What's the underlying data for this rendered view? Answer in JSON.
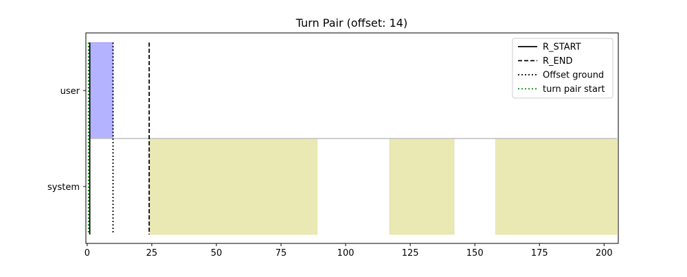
{
  "chart_data": {
    "type": "timeline",
    "title": "Turn Pair (offset: 14)",
    "xlabel": "",
    "ylabel": "",
    "xlim": [
      -0.5,
      205.5
    ],
    "x_ticks": [
      0,
      25,
      50,
      75,
      100,
      125,
      150,
      175,
      200
    ],
    "x_tick_labels": [
      "0",
      "25",
      "50",
      "75",
      "100",
      "125",
      "150",
      "175",
      "200"
    ],
    "rows": [
      {
        "label": "user",
        "color": "#b3b3ff",
        "edge": "#0000ff",
        "segments": [
          [
            1,
            10
          ]
        ]
      },
      {
        "label": "system",
        "color": "#ebe9b3",
        "edge": "#c7c24d",
        "segments": [
          [
            24,
            89
          ],
          [
            117,
            142
          ],
          [
            158,
            205
          ]
        ]
      }
    ],
    "separator_color": "#bfbfbf",
    "vlines": [
      {
        "name": "R_START",
        "x": 1,
        "style": "solid",
        "color": "#000000"
      },
      {
        "name": "R_END",
        "x": 24,
        "style": "dashed",
        "color": "#000000"
      },
      {
        "name": "Offset ground",
        "x": 10,
        "style": "dotted",
        "color": "#000000"
      },
      {
        "name": "turn pair start",
        "x": 0.5,
        "style": "dotted",
        "color": "#008000"
      }
    ],
    "legend": {
      "placement": "top-right",
      "entries": [
        {
          "label": "R_START",
          "style": "solid",
          "color": "#000000"
        },
        {
          "label": "R_END",
          "style": "dashed",
          "color": "#000000"
        },
        {
          "label": "Offset ground",
          "style": "dotted",
          "color": "#000000"
        },
        {
          "label": "turn pair start",
          "style": "dotted",
          "color": "#008000"
        }
      ]
    },
    "grid": false
  }
}
